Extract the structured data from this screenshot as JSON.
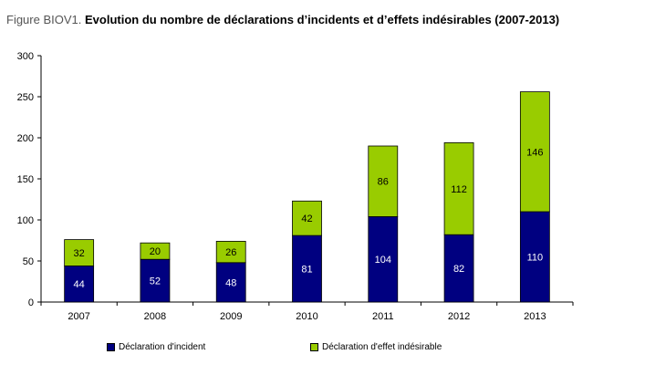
{
  "figure": {
    "prefix": "Figure BIOV1.",
    "title": "Evolution du nombre de déclarations d’incidents et d’effets indésirables (2007-2013)"
  },
  "chart_data": {
    "type": "bar",
    "stacked": true,
    "categories": [
      "2007",
      "2008",
      "2009",
      "2010",
      "2011",
      "2012",
      "2013"
    ],
    "series": [
      {
        "name": "Déclaration d'incident",
        "values": [
          44,
          52,
          48,
          81,
          104,
          82,
          110
        ],
        "color": "#000080"
      },
      {
        "name": "Déclaration d'effet indésirable",
        "values": [
          32,
          20,
          26,
          42,
          86,
          112,
          146
        ],
        "color": "#99CC00"
      }
    ],
    "ylim": [
      0,
      300
    ],
    "yticks": [
      0,
      50,
      100,
      150,
      200,
      250,
      300
    ],
    "grid": false,
    "legend": "bottom"
  }
}
